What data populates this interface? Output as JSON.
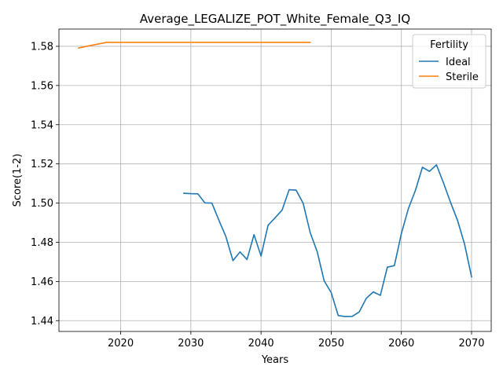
{
  "chart_data": {
    "type": "line",
    "title": "Average_LEGALIZE_POT_White_Female_Q3_IQ",
    "xlabel": "Years",
    "ylabel": "Score(1-2)",
    "xlim": [
      2011.2,
      2072.8
    ],
    "ylim": [
      1.4345,
      1.5888
    ],
    "xticks": [
      2020,
      2030,
      2040,
      2050,
      2060,
      2070
    ],
    "yticks": [
      1.44,
      1.46,
      1.48,
      1.5,
      1.52,
      1.54,
      1.56,
      1.58
    ],
    "xtick_labels": [
      "2020",
      "2030",
      "2040",
      "2050",
      "2060",
      "2070"
    ],
    "ytick_labels": [
      "1.44",
      "1.46",
      "1.48",
      "1.50",
      "1.52",
      "1.54",
      "1.56",
      "1.58"
    ],
    "grid": true,
    "legend": {
      "title": "Fertility",
      "position": "top-right"
    },
    "series": [
      {
        "name": "Ideal",
        "color": "#1f77b4",
        "x": [
          2029,
          2030,
          2031,
          2032,
          2033,
          2034,
          2035,
          2036,
          2037,
          2038,
          2039,
          2040,
          2041,
          2042,
          2043,
          2044,
          2045,
          2046,
          2047,
          2048,
          2049,
          2050,
          2051,
          2052,
          2053,
          2054,
          2055,
          2056,
          2057,
          2058,
          2059,
          2060,
          2061,
          2062,
          2063,
          2064,
          2065,
          2066,
          2067,
          2068,
          2069,
          2070
        ],
        "y": [
          1.505,
          1.5048,
          1.5047,
          1.5001,
          1.5,
          1.4912,
          1.4828,
          1.4706,
          1.4751,
          1.4712,
          1.4839,
          1.473,
          1.4887,
          1.4925,
          1.4964,
          1.5068,
          1.5066,
          1.4999,
          1.485,
          1.4752,
          1.4603,
          1.4543,
          1.4426,
          1.4421,
          1.4422,
          1.4445,
          1.4514,
          1.4547,
          1.4529,
          1.4673,
          1.4681,
          1.4845,
          1.4972,
          1.5065,
          1.5183,
          1.5162,
          1.5195,
          1.5103,
          1.5004,
          1.4912,
          1.4791,
          1.4624
        ]
      },
      {
        "name": "Sterile",
        "color": "#ff7f0e",
        "x": [
          2014,
          2015,
          2016,
          2017,
          2018,
          2019,
          2020,
          2025,
          2030,
          2035,
          2040,
          2045,
          2047
        ],
        "y": [
          1.5791,
          1.5799,
          1.5806,
          1.5813,
          1.582,
          1.582,
          1.582,
          1.582,
          1.582,
          1.582,
          1.582,
          1.582,
          1.582
        ]
      }
    ]
  }
}
